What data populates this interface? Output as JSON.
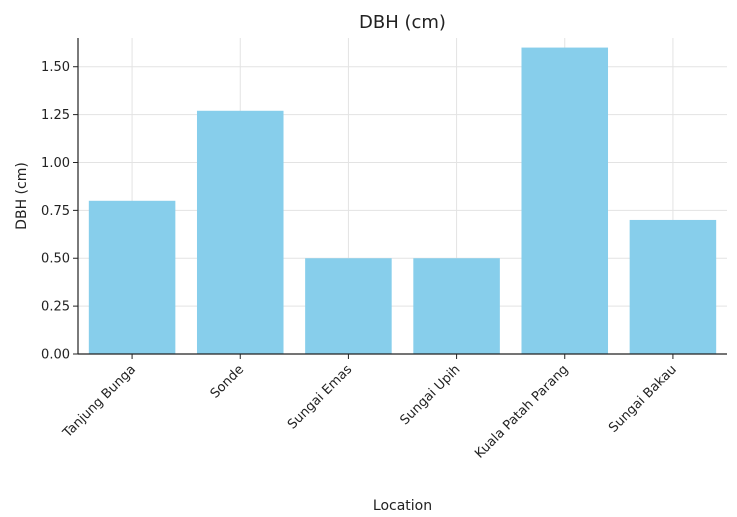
{
  "chart_data": {
    "type": "bar",
    "title": "DBH (cm)",
    "xlabel": "Location",
    "ylabel": "DBH (cm)",
    "categories": [
      "Tanjung Bunga",
      "Sonde",
      "Sungai Emas",
      "Sungai Upih",
      "Kuala Patah Parang",
      "Sungai Bakau"
    ],
    "values": [
      0.8,
      1.27,
      0.5,
      0.5,
      1.6,
      0.7
    ],
    "ylim": [
      0,
      1.65
    ],
    "yticks": [
      0.0,
      0.25,
      0.5,
      0.75,
      1.0,
      1.25,
      1.5
    ],
    "ytick_labels": [
      "0.00",
      "0.25",
      "0.50",
      "0.75",
      "1.00",
      "1.25",
      "1.50"
    ],
    "grid": true,
    "bar_color": "#87ceeb"
  }
}
